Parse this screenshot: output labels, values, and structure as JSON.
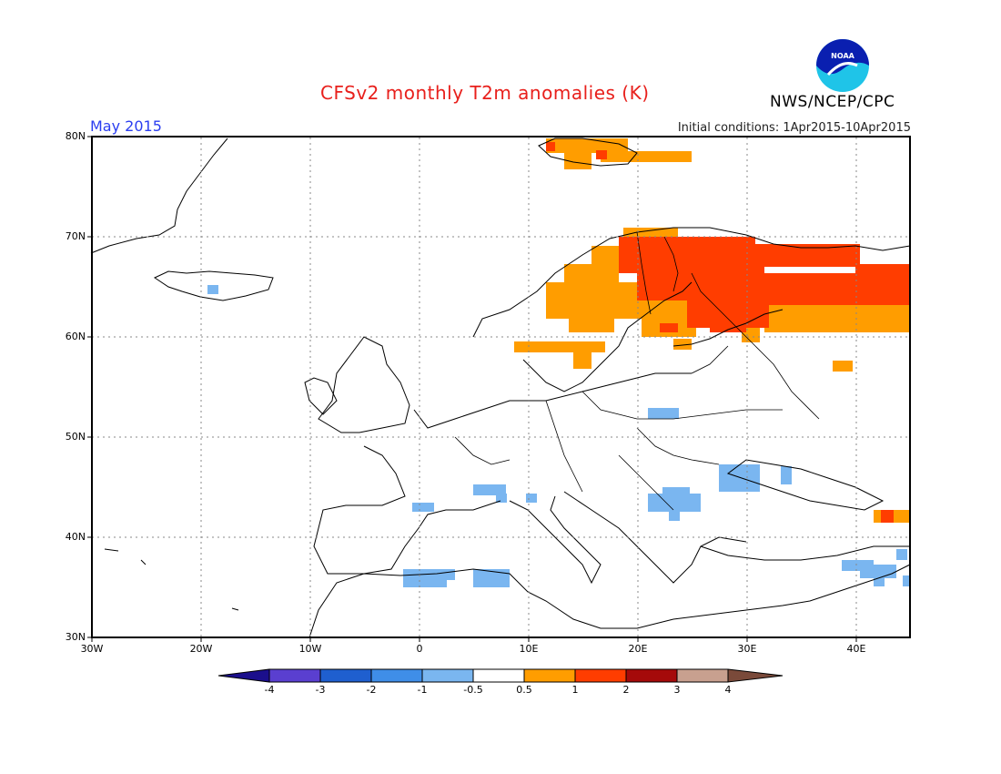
{
  "header": {
    "title": "CFSv2 monthly T2m anomalies (K)",
    "month": "May 2015",
    "initial_conditions": "Initial conditions: 1Apr2015-10Apr2015",
    "agency": "NWS/NCEP/CPC",
    "logo_text": "NOAA"
  },
  "map": {
    "region": "Europe",
    "lon_range": [
      -30,
      45
    ],
    "lat_range": [
      30,
      80
    ],
    "lat_labels": [
      "80N",
      "70N",
      "60N",
      "50N",
      "40N",
      "30N"
    ],
    "lon_labels": [
      "30W",
      "20W",
      "10W",
      "0",
      "10E",
      "20E",
      "30E",
      "40E"
    ],
    "grid": "dotted",
    "anomaly_areas": [
      {
        "area": "Svalbard",
        "category": "0.5 to 1"
      },
      {
        "area": "Northern Fennoscandia and NW Russia",
        "category": "1 to 2"
      },
      {
        "area": "Norway and Sweden",
        "category": "0.5 to 1"
      },
      {
        "area": "Iceland",
        "category": "-1 to -0.5"
      },
      {
        "area": "Poland",
        "category": "-1 to -0.5"
      },
      {
        "area": "Balkans, Romania, Black Sea",
        "category": "-1 to -0.5"
      },
      {
        "area": "Northern Spain, Corsica, Sardinia, Italy",
        "category": "-1 to -0.5"
      },
      {
        "area": "North Africa (Algeria, Tunisia)",
        "category": "-1 to -0.5"
      },
      {
        "area": "Levant and Turkey east",
        "category": "-1 to -0.5"
      },
      {
        "area": "Caucasus",
        "category": "1 to 2"
      }
    ]
  },
  "colorbar": {
    "labels": [
      "-4",
      "-3",
      "-2",
      "-1",
      "-0.5",
      "0.5",
      "1",
      "2",
      "3",
      "4"
    ],
    "colors": {
      "lt-4": "#1b0f8c",
      "-4to-3": "#5a3fd0",
      "-3to-2": "#1f5fcf",
      "-2to-1": "#3f8ee8",
      "-1to-0.5": "#7ab6f0",
      "-0.5to0.5": "#ffffff",
      "0.5to1": "#ff9d00",
      "1to2": "#ff3d00",
      "2to3": "#a50a0a",
      "3to4": "#c8a08f",
      "gt4": "#7a4a3a"
    }
  }
}
